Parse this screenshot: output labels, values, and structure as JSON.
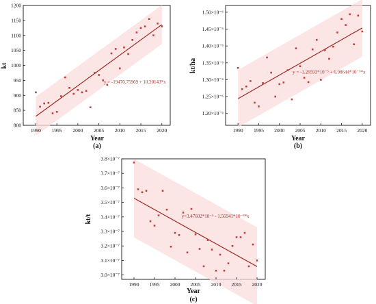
{
  "colors": {
    "band": "#fbdcdc",
    "fit": "#9a2a22",
    "points": "#c0403a",
    "axis": "#111111",
    "equation": "#b0302a"
  },
  "chart_data": [
    {
      "type": "scatter",
      "panel_label": "(a)",
      "title": "",
      "xlabel": "Year",
      "ylabel": "kt",
      "xlim": [
        1987,
        2022
      ],
      "ylim": [
        800,
        1200
      ],
      "x_ticks": [
        1990,
        1995,
        2000,
        2005,
        2010,
        2015,
        2020
      ],
      "y_ticks": [
        800,
        850,
        900,
        950,
        1000,
        1050,
        1100,
        1150,
        1200
      ],
      "x_tick_labels": [
        "1990",
        "1995",
        "2000",
        "2005",
        "2010",
        "2015",
        "2020"
      ],
      "y_tick_labels": [
        "800",
        "850",
        "900",
        "950",
        "1000",
        "1050",
        "1100",
        "1150",
        "1200"
      ],
      "x": [
        1990,
        1991,
        1992,
        1993,
        1994,
        1995,
        1996,
        1997,
        1998,
        1999,
        2000,
        2001,
        2002,
        2003,
        2004,
        2005,
        2006,
        2007,
        2008,
        2009,
        2010,
        2011,
        2012,
        2013,
        2014,
        2015,
        2016,
        2017,
        2018,
        2019,
        2020
      ],
      "y": [
        910,
        862,
        873,
        875,
        840,
        845,
        897,
        960,
        925,
        905,
        918,
        910,
        915,
        860,
        975,
        968,
        950,
        935,
        1040,
        1055,
        990,
        1060,
        1038,
        1085,
        1110,
        1125,
        1130,
        1155,
        1100,
        1140,
        1130
      ],
      "fit": {
        "intercept": -19470.75969,
        "slope": 10.20143
      },
      "band_halfwidth": 65,
      "equation_text": "y = -19470.75969 + 10.20143*x",
      "equation_anchor": [
        2006.2,
        940
      ]
    },
    {
      "type": "scatter",
      "panel_label": "(b)",
      "title": "",
      "xlabel": "Year",
      "ylabel": "kt/ha",
      "xlim": [
        1987,
        2022
      ],
      "ylim": [
        1.165,
        1.52
      ],
      "x_ticks": [
        1990,
        1995,
        2000,
        2005,
        2010,
        2015,
        2020
      ],
      "y_ticks": [
        1.2,
        1.25,
        1.3,
        1.35,
        1.4,
        1.45,
        1.5
      ],
      "x_tick_labels": [
        "1990",
        "1995",
        "2000",
        "2005",
        "2010",
        "2015",
        "2020"
      ],
      "y_tick_labels": [
        "1.20×10⁻⁶",
        "1.25×10⁻⁶",
        "1.30×10⁻⁶",
        "1.35×10⁻⁶",
        "1.40×10⁻⁶",
        "1.45×10⁻⁶",
        "1.50×10⁻⁶"
      ],
      "x": [
        1990,
        1991,
        1992,
        1993,
        1994,
        1995,
        1996,
        1997,
        1998,
        1999,
        2000,
        2001,
        2002,
        2003,
        2004,
        2005,
        2006,
        2007,
        2008,
        2009,
        2010,
        2011,
        2012,
        2013,
        2014,
        2015,
        2016,
        2017,
        2018,
        2019,
        2020
      ],
      "y": [
        1.335,
        1.272,
        1.28,
        1.296,
        1.232,
        1.221,
        1.29,
        1.366,
        1.321,
        1.25,
        1.287,
        1.292,
        1.328,
        1.242,
        1.393,
        1.34,
        1.306,
        1.293,
        1.39,
        1.418,
        1.3,
        1.388,
        1.362,
        1.398,
        1.44,
        1.48,
        1.462,
        1.494,
        1.405,
        1.49,
        1.443
      ],
      "fit": {
        "intercept": -12.65913,
        "slope": 0.00698644
      },
      "band_halfwidth": 0.085,
      "equation_text": "y = -1.26593*10⁻⁵ + 6.98644*10⁻⁹*x",
      "equation_anchor": [
        2003.2,
        1.318
      ]
    },
    {
      "type": "scatter",
      "panel_label": "(c)",
      "title": "",
      "xlabel": "Year",
      "ylabel": "kt/t",
      "xlim": [
        1987,
        2022
      ],
      "ylim": [
        2.97,
        3.8
      ],
      "x_ticks": [
        1990,
        1995,
        2000,
        2005,
        2010,
        2015,
        2020
      ],
      "y_ticks": [
        3.0,
        3.1,
        3.2,
        3.3,
        3.4,
        3.5,
        3.6,
        3.7,
        3.8
      ],
      "x_tick_labels": [
        "1990",
        "1995",
        "2000",
        "2005",
        "2010",
        "2015",
        "2020"
      ],
      "y_tick_labels": [
        "3.0×10⁻⁷",
        "3.1×10⁻⁷",
        "3.2×10⁻⁷",
        "3.3×10⁻⁷",
        "3.4×10⁻⁷",
        "3.5×10⁻⁷",
        "3.6×10⁻⁷",
        "3.7×10⁻⁷",
        "3.8×10⁻⁷"
      ],
      "x": [
        1990,
        1991,
        1992,
        1993,
        1994,
        1995,
        1996,
        1997,
        1998,
        1999,
        2000,
        2001,
        2002,
        2003,
        2004,
        2005,
        2006,
        2007,
        2008,
        2009,
        2010,
        2011,
        2012,
        2013,
        2014,
        2015,
        2016,
        2017,
        2018,
        2019,
        2020
      ],
      "y": [
        3.775,
        3.59,
        3.57,
        3.58,
        3.37,
        3.34,
        3.41,
        3.58,
        3.45,
        3.195,
        3.29,
        3.275,
        3.43,
        3.155,
        3.455,
        3.28,
        3.18,
        3.06,
        3.24,
        3.175,
        3.03,
        3.14,
        3.03,
        3.08,
        3.2,
        3.26,
        3.26,
        3.29,
        3.06,
        3.21,
        3.1
      ],
      "fit": {
        "intercept": 34.7602,
        "slope": -0.0156941
      },
      "band_halfwidth": 0.27,
      "equation_text": "y=3.47602*10⁻⁵ - 1.56941*10⁻⁸*x",
      "equation_anchor": [
        2001.6,
        3.395
      ]
    }
  ]
}
